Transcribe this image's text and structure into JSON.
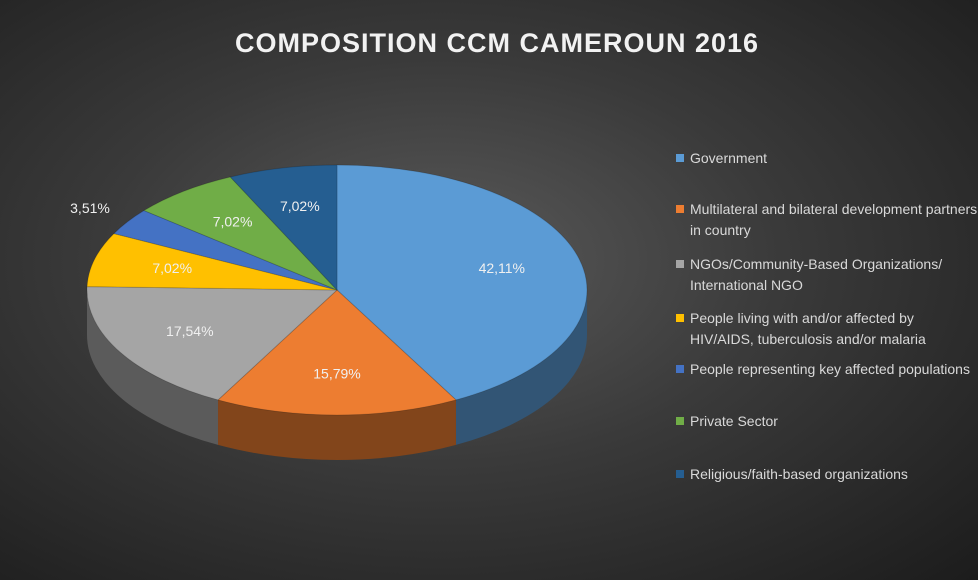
{
  "chart_data": {
    "type": "pie",
    "title": "COMPOSITION CCM CAMEROUN 2016",
    "categories": [
      "Government",
      "Multilateral and bilateral development partners in country",
      "NGOs/Community-Based Organizations/ International NGO",
      "People living with and/or affected by HIV/AIDS, tuberculosis and/or malaria",
      "People representing key affected populations",
      "Private Sector",
      "Religious/faith-based organizations"
    ],
    "values": [
      42.11,
      15.79,
      17.54,
      7.02,
      3.51,
      7.02,
      7.02
    ],
    "value_labels": [
      "42,11%",
      "15,79%",
      "17,54%",
      "7,02%",
      "3,51%",
      "7,02%",
      "7,02%"
    ],
    "colors": [
      "#5b9bd5",
      "#ed7d31",
      "#a5a5a5",
      "#ffc000",
      "#4472c4",
      "#70ad47",
      "#255e91"
    ],
    "legend": "right"
  }
}
